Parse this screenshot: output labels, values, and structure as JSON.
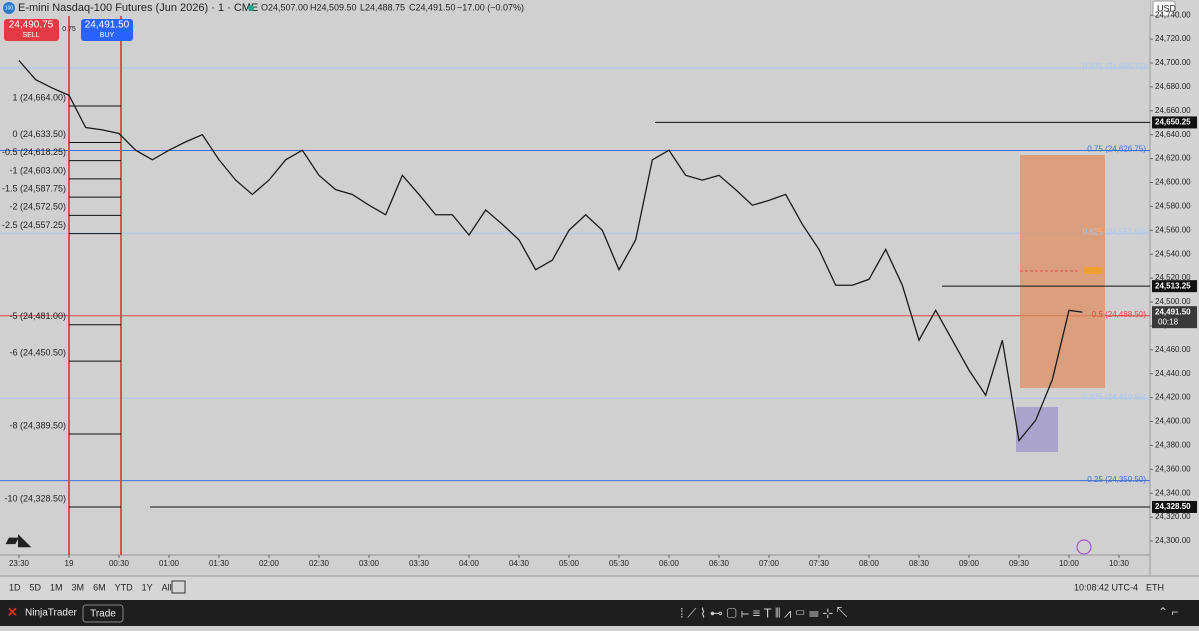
{
  "header": {
    "badge": "100",
    "title": "E-mini Nasdaq-100 Futures (Jun 2026) · 1 · CME",
    "open": "O24,507.00",
    "high": "H24,509.50",
    "low": "L24,488.75",
    "close": "C24,491.50",
    "change": "−17.00 (−0.07%)"
  },
  "trade": {
    "sell_price": "24,490.75",
    "sell": "SELL",
    "spread": "0.75",
    "buy_price": "24,491.50",
    "buy": "BUY"
  },
  "currency": "USD",
  "chart_data": {
    "type": "line",
    "color": "#1a1a1a",
    "x": [
      0,
      10,
      20,
      30,
      40,
      50,
      60,
      70,
      80,
      90,
      100,
      110,
      120,
      130,
      140,
      150,
      160,
      170,
      180,
      190,
      200,
      210,
      220,
      230,
      240,
      250,
      260,
      270,
      280,
      290,
      300,
      310,
      320,
      330,
      340,
      350,
      360,
      370,
      380,
      390,
      400,
      410,
      420,
      430,
      440,
      450,
      460,
      470,
      480,
      490,
      500,
      510,
      520,
      530,
      540,
      550,
      560,
      570,
      580,
      590,
      600,
      610,
      620,
      630,
      638
    ],
    "values": [
      24702,
      24686,
      24679,
      24673,
      24646,
      24644,
      24641,
      24627,
      24619,
      24627,
      24634,
      24640,
      24619,
      24602,
      24590,
      24602,
      24619,
      24627,
      24606,
      24594,
      24590,
      24581,
      24573,
      24606,
      24590,
      24573,
      24573,
      24556,
      24577,
      24565,
      24552,
      24527,
      24535,
      24560,
      24573,
      24560,
      24527,
      24552,
      24619,
      24627,
      24606,
      24602,
      24606,
      24594,
      24581,
      24585,
      24590,
      24565,
      24544,
      24514,
      24514,
      24519,
      24544,
      24514,
      24468,
      24493,
      24468,
      24443,
      24422,
      24468,
      24384,
      24401,
      24435,
      24493,
      24491.5
    ],
    "xlim": [
      -11.4,
      678.6
    ],
    "xticks": [
      {
        "value": 0,
        "label": "23:30"
      },
      {
        "value": 30,
        "label": "19"
      },
      {
        "value": 60,
        "label": "00:30"
      },
      {
        "value": 90,
        "label": "01:00"
      },
      {
        "value": 120,
        "label": "01:30"
      },
      {
        "value": 150,
        "label": "02:00"
      },
      {
        "value": 180,
        "label": "02:30"
      },
      {
        "value": 210,
        "label": "03:00"
      },
      {
        "value": 240,
        "label": "03:30"
      },
      {
        "value": 270,
        "label": "04:00"
      },
      {
        "value": 300,
        "label": "04:30"
      },
      {
        "value": 330,
        "label": "05:00"
      },
      {
        "value": 360,
        "label": "05:30"
      },
      {
        "value": 390,
        "label": "06:00"
      },
      {
        "value": 420,
        "label": "06:30"
      },
      {
        "value": 450,
        "label": "07:00"
      },
      {
        "value": 480,
        "label": "07:30"
      },
      {
        "value": 510,
        "label": "08:00"
      },
      {
        "value": 540,
        "label": "08:30"
      },
      {
        "value": 570,
        "label": "09:00"
      },
      {
        "value": 600,
        "label": "09:30"
      },
      {
        "value": 630,
        "label": "10:00"
      },
      {
        "value": 660,
        "label": "10:30"
      }
    ],
    "ylim": [
      24288.3,
      24752.7
    ],
    "yticks": [
      {
        "value": 24300,
        "label": "24,300.00"
      },
      {
        "value": 24320,
        "label": "24,320.00"
      },
      {
        "value": 24340,
        "label": "24,340.00"
      },
      {
        "value": 24360,
        "label": "24,360.00"
      },
      {
        "value": 24380,
        "label": "24,380.00"
      },
      {
        "value": 24400,
        "label": "24,400.00"
      },
      {
        "value": 24420,
        "label": "24,420.00"
      },
      {
        "value": 24440,
        "label": "24,440.00"
      },
      {
        "value": 24460,
        "label": "24,460.00"
      },
      {
        "value": 24480,
        "label": "24,480.00"
      },
      {
        "value": 24500,
        "label": "24,500.00"
      },
      {
        "value": 24520,
        "label": "24,520.00"
      },
      {
        "value": 24540,
        "label": "24,540.00"
      },
      {
        "value": 24560,
        "label": "24,560.00"
      },
      {
        "value": 24580,
        "label": "24,580.00"
      },
      {
        "value": 24600,
        "label": "24,600.00"
      },
      {
        "value": 24620,
        "label": "24,620.00"
      },
      {
        "value": 24640,
        "label": "24,640.00"
      },
      {
        "value": 24660,
        "label": "24,660.00"
      },
      {
        "value": 24680,
        "label": "24,680.00"
      },
      {
        "value": 24700,
        "label": "24,700.00"
      },
      {
        "value": 24720,
        "label": "24,720.00"
      },
      {
        "value": 24740,
        "label": "24,740.00"
      }
    ],
    "levels": [
      {
        "value": 24664,
        "label": "1 (24,664.00)"
      },
      {
        "value": 24633.5,
        "label": "0 (24,633.50)"
      },
      {
        "value": 24618.25,
        "label": "-0.5 (24,618.25)"
      },
      {
        "value": 24603,
        "label": "-1 (24,603.00)"
      },
      {
        "value": 24587.75,
        "label": "-1.5 (24,587.75)"
      },
      {
        "value": 24572.5,
        "label": "-2 (24,572.50)"
      },
      {
        "value": 24557.25,
        "label": "-2.5 (24,557.25)"
      },
      {
        "value": 24481,
        "label": "-5 (24,481.00)"
      },
      {
        "value": 24450.5,
        "label": "-6 (24,450.50)"
      },
      {
        "value": 24389.5,
        "label": "-8 (24,389.50)"
      },
      {
        "value": 24328.5,
        "label": "-10 (24,328.50)"
      }
    ],
    "fib_levels": [
      {
        "value": 24695.75,
        "label": "0.875 (24,695.75)",
        "color": "#a8c8f0"
      },
      {
        "value": 24626.75,
        "label": "0.75 (24,626.75)",
        "color": "#3d6fd6"
      },
      {
        "value": 24557.5,
        "label": "0.625 (24,557.50)",
        "color": "#a8c8f0"
      },
      {
        "value": 24488.5,
        "label": "0.5 (24,488.50)",
        "color": "#e04848"
      },
      {
        "value": 24419.5,
        "label": "0.375 (24,419.50)",
        "color": "#a8c8f0"
      },
      {
        "value": 24350.5,
        "label": "0.25 (24,350.50)",
        "color": "#3d6fd6"
      }
    ],
    "price_labels": [
      {
        "value": 24650.25,
        "label": "24,650.25"
      },
      {
        "value": 24513.25,
        "label": "24,513.25"
      },
      {
        "value": 24328.5,
        "label": "24,328.50"
      }
    ],
    "last_price": {
      "value": 24491.5,
      "label": "24,491.50",
      "countdown": "00:18"
    }
  },
  "bottom_bar": {
    "ranges": [
      "1D",
      "5D",
      "1M",
      "3M",
      "6M",
      "YTD",
      "1Y",
      "All"
    ],
    "clock": "10:08:42 UTC-4",
    "session": "ETH"
  },
  "taskbar": {
    "brand": "NinjaTrader",
    "button": "Trade"
  }
}
